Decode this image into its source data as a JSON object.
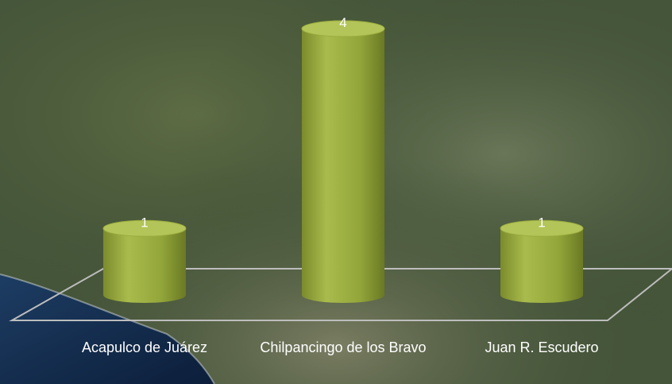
{
  "chart_data": {
    "type": "bar",
    "categories": [
      "Acapulco de Juárez",
      "Chilpancingo de los Bravo",
      "Juan R. Escudero"
    ],
    "values": [
      1,
      4,
      1
    ],
    "color": "#9aab3e"
  }
}
